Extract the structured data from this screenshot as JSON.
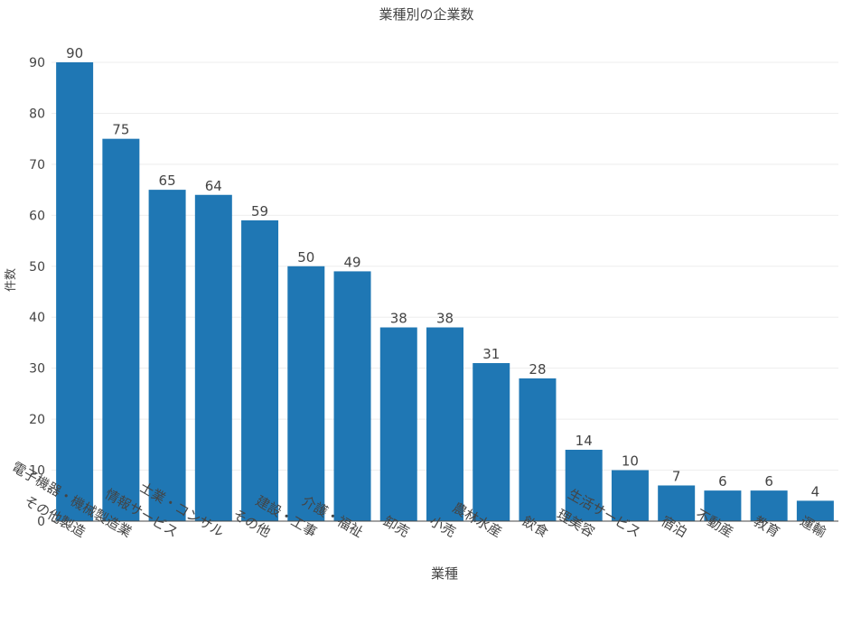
{
  "chart_data": {
    "type": "bar",
    "title": "業種別の企業数",
    "xlabel": "業種",
    "ylabel": "件数",
    "ylim": [
      0,
      90
    ],
    "yticks": [
      0,
      10,
      20,
      30,
      40,
      50,
      60,
      70,
      80,
      90
    ],
    "grid": true,
    "bar_color": "#1f77b4",
    "categories": [
      "その他製造",
      "電子機器・機械製造業",
      "情報サービス",
      "士業・コンサル",
      "その他",
      "建設・工事",
      "介護・福祉",
      "卸売",
      "小売",
      "農林水産",
      "飲食",
      "理美容",
      "生活サービス",
      "宿泊",
      "不動産",
      "教育",
      "運輸"
    ],
    "values": [
      90,
      75,
      65,
      64,
      59,
      50,
      49,
      38,
      38,
      31,
      28,
      14,
      10,
      7,
      6,
      6,
      4
    ]
  }
}
